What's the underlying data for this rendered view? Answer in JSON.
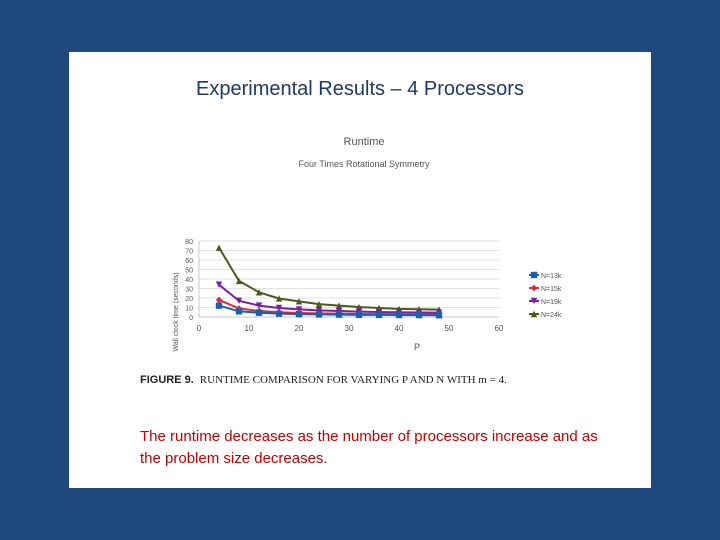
{
  "slide": {
    "title": "Experimental Results – 4 Processors",
    "figure_label": "FIGURE 9.",
    "figure_caption": "RUNTIME COMPARISON FOR VARYING P AND N WITH m = 4.",
    "note": "The runtime decreases as the number of processors increase and as the problem size decreases."
  },
  "chart_data": {
    "type": "line",
    "title": "Runtime",
    "subtitle": "Four Times Rotational Symmetry",
    "xlabel": "P",
    "ylabel": "Wall clock time (seconds)",
    "xlim": [
      0,
      60
    ],
    "ylim": [
      0,
      80
    ],
    "x_ticks": [
      0,
      10,
      20,
      30,
      40,
      50,
      60
    ],
    "y_ticks": [
      0,
      10,
      20,
      30,
      40,
      50,
      60,
      70,
      80
    ],
    "grid": true,
    "legend_position": "right",
    "x": [
      4,
      8,
      12,
      16,
      20,
      24,
      28,
      32,
      36,
      40,
      44,
      48
    ],
    "series": [
      {
        "name": "N=13k",
        "color": "#1f5fa8",
        "marker": "square",
        "values": [
          12,
          6,
          4.5,
          3.5,
          3,
          2.7,
          2.5,
          2.3,
          2.2,
          2.1,
          2,
          1.8
        ]
      },
      {
        "name": "N=15k",
        "color": "#e0283c",
        "marker": "diamond",
        "values": [
          18,
          9,
          6.5,
          5,
          4.2,
          3.8,
          3.5,
          3.2,
          3,
          2.9,
          2.8,
          2.6
        ]
      },
      {
        "name": "N=19k",
        "color": "#7b1fa2",
        "marker": "triangle-down",
        "values": [
          34,
          17,
          12,
          9.5,
          8,
          7,
          6.3,
          5.7,
          5.2,
          5,
          4.8,
          4.6
        ]
      },
      {
        "name": "N=24k",
        "color": "#4d5a1e",
        "marker": "triangle-up",
        "values": [
          73,
          38,
          26,
          19.5,
          16.5,
          13.5,
          12,
          10.5,
          9.5,
          8.5,
          8.2,
          7.8
        ]
      }
    ]
  }
}
